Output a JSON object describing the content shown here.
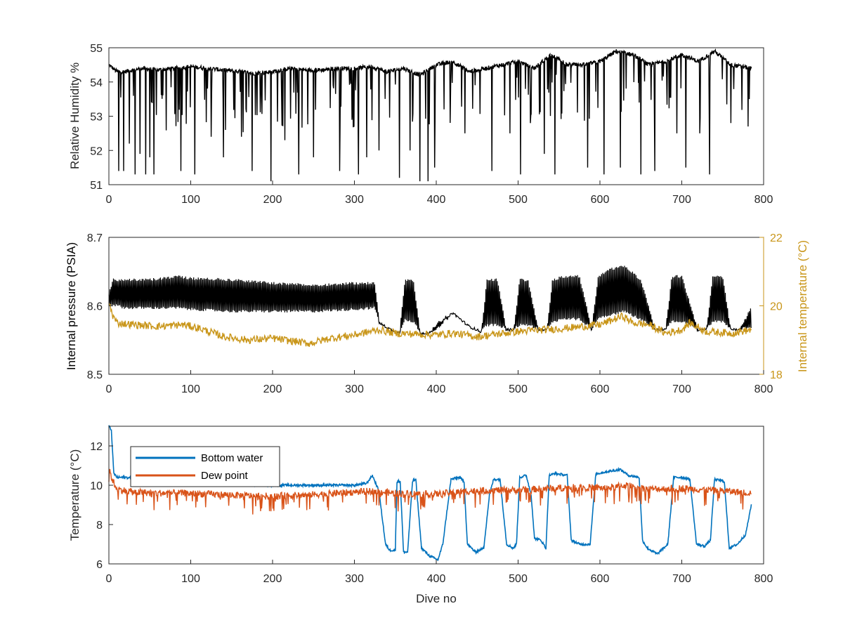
{
  "chart_data": [
    {
      "type": "line",
      "xlabel": "",
      "ylabel": "Relative Humidity %",
      "xlim": [
        0,
        800
      ],
      "ylim": [
        51,
        55
      ],
      "xticks": [
        0,
        100,
        200,
        300,
        400,
        500,
        600,
        700,
        800
      ],
      "yticks": [
        51,
        52,
        53,
        54,
        55
      ],
      "grid": false,
      "series": [
        {
          "name": "",
          "color": "#000000",
          "x": [
            0,
            10,
            20,
            40,
            60,
            80,
            100,
            120,
            140,
            160,
            180,
            200,
            220,
            240,
            260,
            280,
            300,
            320,
            340,
            360,
            380,
            400,
            420,
            440,
            460,
            480,
            500,
            520,
            540,
            560,
            580,
            600,
            620,
            640,
            660,
            680,
            700,
            720,
            740,
            760,
            785
          ],
          "baseline": [
            54.5,
            54.3,
            54.3,
            54.4,
            54.35,
            54.4,
            54.45,
            54.4,
            54.35,
            54.3,
            54.25,
            54.3,
            54.4,
            54.35,
            54.35,
            54.4,
            54.4,
            54.45,
            54.3,
            54.4,
            54.2,
            54.5,
            54.6,
            54.3,
            54.4,
            54.5,
            54.6,
            54.4,
            54.8,
            54.5,
            54.5,
            54.6,
            54.9,
            54.8,
            54.5,
            54.6,
            54.8,
            54.6,
            54.9,
            54.5,
            54.4
          ],
          "dips": [
            [
              12,
              51.4
            ],
            [
              18,
              51.4
            ],
            [
              25,
              52.2
            ],
            [
              32,
              51.3
            ],
            [
              38,
              51.9
            ],
            [
              45,
              51.3
            ],
            [
              50,
              51.8
            ],
            [
              55,
              51.3
            ],
            [
              88,
              51.4
            ],
            [
              105,
              51.3
            ],
            [
              125,
              52.4
            ],
            [
              140,
              51.8
            ],
            [
              162,
              52.4
            ],
            [
              175,
              51.4
            ],
            [
              198,
              51.1
            ],
            [
              215,
              52.3
            ],
            [
              232,
              51.3
            ],
            [
              250,
              51.8
            ],
            [
              282,
              51.4
            ],
            [
              305,
              51.3
            ],
            [
              315,
              51.8
            ],
            [
              330,
              52.0
            ],
            [
              355,
              51.2
            ],
            [
              368,
              52.0
            ],
            [
              380,
              51.1
            ],
            [
              390,
              51.1
            ],
            [
              398,
              51.5
            ],
            [
              435,
              52.5
            ],
            [
              468,
              51.4
            ],
            [
              490,
              52.5
            ],
            [
              503,
              51.3
            ],
            [
              515,
              52.8
            ],
            [
              532,
              51.9
            ],
            [
              545,
              51.3
            ],
            [
              585,
              51.5
            ],
            [
              605,
              51.3
            ],
            [
              625,
              51.5
            ],
            [
              650,
              51.3
            ],
            [
              667,
              51.4
            ],
            [
              694,
              52.5
            ],
            [
              705,
              51.5
            ],
            [
              722,
              52.5
            ],
            [
              734,
              51.3
            ],
            [
              760,
              52.8
            ],
            [
              781,
              52.7
            ]
          ]
        }
      ]
    },
    {
      "type": "line",
      "xlabel": "",
      "ylabel": "Internal pressure (PSIA)",
      "y2label": "Internal temperature (°C)",
      "xlim": [
        0,
        800
      ],
      "ylim": [
        8.5,
        8.7
      ],
      "y2lim": [
        18,
        22
      ],
      "xticks": [
        0,
        100,
        200,
        300,
        400,
        500,
        600,
        700,
        800
      ],
      "yticks": [
        8.5,
        8.6,
        8.7
      ],
      "y2ticks": [
        18,
        20,
        22
      ],
      "grid": false,
      "series": [
        {
          "name": "",
          "axis": "left",
          "color": "#000000",
          "x": [
            0,
            5,
            20,
            50,
            85,
            100,
            150,
            200,
            250,
            300,
            325,
            330,
            345,
            355,
            362,
            372,
            380,
            390,
            400,
            420,
            440,
            455,
            462,
            475,
            485,
            495,
            502,
            512,
            525,
            535,
            542,
            558,
            575,
            590,
            598,
            612,
            630,
            650,
            668,
            680,
            688,
            700,
            720,
            730,
            738,
            750,
            760,
            770,
            785
          ],
          "low": [
            8.6,
            8.6,
            8.595,
            8.595,
            8.595,
            8.593,
            8.59,
            8.59,
            8.59,
            8.593,
            8.595,
            8.575,
            8.565,
            8.56,
            8.578,
            8.575,
            8.56,
            8.56,
            8.563,
            8.59,
            8.57,
            8.562,
            8.57,
            8.57,
            8.565,
            8.565,
            8.57,
            8.57,
            8.565,
            8.565,
            8.575,
            8.58,
            8.578,
            8.565,
            8.58,
            8.585,
            8.59,
            8.578,
            8.565,
            8.565,
            8.575,
            8.575,
            8.565,
            8.565,
            8.575,
            8.575,
            8.565,
            8.565,
            8.565
          ],
          "high": [
            8.62,
            8.64,
            8.64,
            8.64,
            8.645,
            8.642,
            8.64,
            8.635,
            8.632,
            8.635,
            8.635,
            8.58,
            8.565,
            8.56,
            8.64,
            8.64,
            8.565,
            8.56,
            8.575,
            8.593,
            8.57,
            8.562,
            8.64,
            8.64,
            8.57,
            8.568,
            8.64,
            8.64,
            8.565,
            8.565,
            8.64,
            8.645,
            8.645,
            8.568,
            8.645,
            8.655,
            8.66,
            8.64,
            8.565,
            8.565,
            8.645,
            8.645,
            8.565,
            8.565,
            8.645,
            8.645,
            8.565,
            8.565,
            8.6
          ]
        },
        {
          "name": "",
          "axis": "right",
          "color": "#C9961A",
          "x": [
            0,
            5,
            10,
            30,
            60,
            90,
            110,
            140,
            170,
            200,
            230,
            245,
            270,
            300,
            320,
            330,
            350,
            400,
            420,
            450,
            500,
            560,
            600,
            628,
            640,
            660,
            680,
            700,
            710,
            730,
            760,
            785
          ],
          "y": [
            20.1,
            19.7,
            19.5,
            19.45,
            19.4,
            19.45,
            19.35,
            19.1,
            19.0,
            19.05,
            18.95,
            18.9,
            19.05,
            19.15,
            19.25,
            19.3,
            19.2,
            19.15,
            19.2,
            19.1,
            19.25,
            19.35,
            19.45,
            19.7,
            19.5,
            19.45,
            19.2,
            19.3,
            19.5,
            19.25,
            19.2,
            19.3
          ]
        }
      ]
    },
    {
      "type": "line",
      "xlabel": "Dive no",
      "ylabel": "Temperature (°C)",
      "xlim": [
        0,
        800
      ],
      "ylim": [
        6,
        13
      ],
      "xticks": [
        0,
        100,
        200,
        300,
        400,
        500,
        600,
        700,
        800
      ],
      "yticks": [
        6,
        8,
        10,
        12
      ],
      "grid": false,
      "legend": "top-left",
      "series": [
        {
          "name": "Bottom water",
          "color": "#0072BD",
          "x": [
            0,
            3,
            6,
            10,
            20,
            40,
            60,
            80,
            100,
            150,
            200,
            250,
            300,
            315,
            322,
            330,
            338,
            343,
            350,
            352,
            356,
            360,
            365,
            371,
            375,
            382,
            392,
            402,
            408,
            418,
            428,
            434,
            438,
            448,
            458,
            465,
            470,
            478,
            486,
            494,
            498,
            502,
            510,
            516,
            520,
            528,
            534,
            538,
            545,
            560,
            565,
            575,
            588,
            595,
            598,
            610,
            625,
            635,
            648,
            652,
            658,
            670,
            683,
            690,
            700,
            710,
            718,
            728,
            735,
            740,
            752,
            758,
            768,
            778,
            785
          ],
          "y": [
            13.0,
            12.8,
            10.6,
            10.4,
            10.4,
            10.3,
            10.25,
            10.2,
            10.2,
            10.1,
            10.0,
            10.0,
            10.0,
            10.1,
            10.5,
            9.7,
            7.0,
            6.7,
            6.7,
            10.2,
            10.2,
            6.6,
            6.6,
            10.2,
            10.3,
            6.8,
            6.4,
            6.2,
            7.0,
            10.3,
            10.4,
            10.2,
            7.0,
            6.6,
            6.8,
            9.5,
            10.3,
            10.3,
            7.0,
            6.8,
            7.0,
            10.4,
            10.5,
            9.5,
            7.3,
            7.2,
            6.8,
            10.5,
            10.6,
            10.5,
            7.2,
            7.0,
            7.0,
            10.6,
            10.6,
            10.7,
            10.8,
            10.5,
            10.4,
            7.2,
            6.8,
            6.5,
            7.0,
            10.4,
            10.4,
            10.3,
            7.0,
            6.9,
            7.2,
            10.3,
            10.2,
            6.8,
            7.0,
            7.5,
            9.0
          ]
        },
        {
          "name": "Dew point",
          "color": "#D95319",
          "x": [
            0,
            5,
            10,
            30,
            60,
            90,
            120,
            150,
            180,
            200,
            240,
            280,
            320,
            350,
            380,
            400,
            440,
            470,
            500,
            540,
            580,
            610,
            630,
            660,
            700,
            740,
            785
          ],
          "y": [
            10.8,
            10.2,
            9.8,
            9.65,
            9.6,
            9.6,
            9.55,
            9.5,
            9.45,
            9.45,
            9.5,
            9.6,
            9.7,
            9.6,
            9.55,
            9.55,
            9.7,
            9.75,
            9.75,
            9.85,
            9.9,
            9.85,
            10.0,
            9.8,
            9.85,
            9.75,
            9.6
          ]
        }
      ]
    }
  ]
}
